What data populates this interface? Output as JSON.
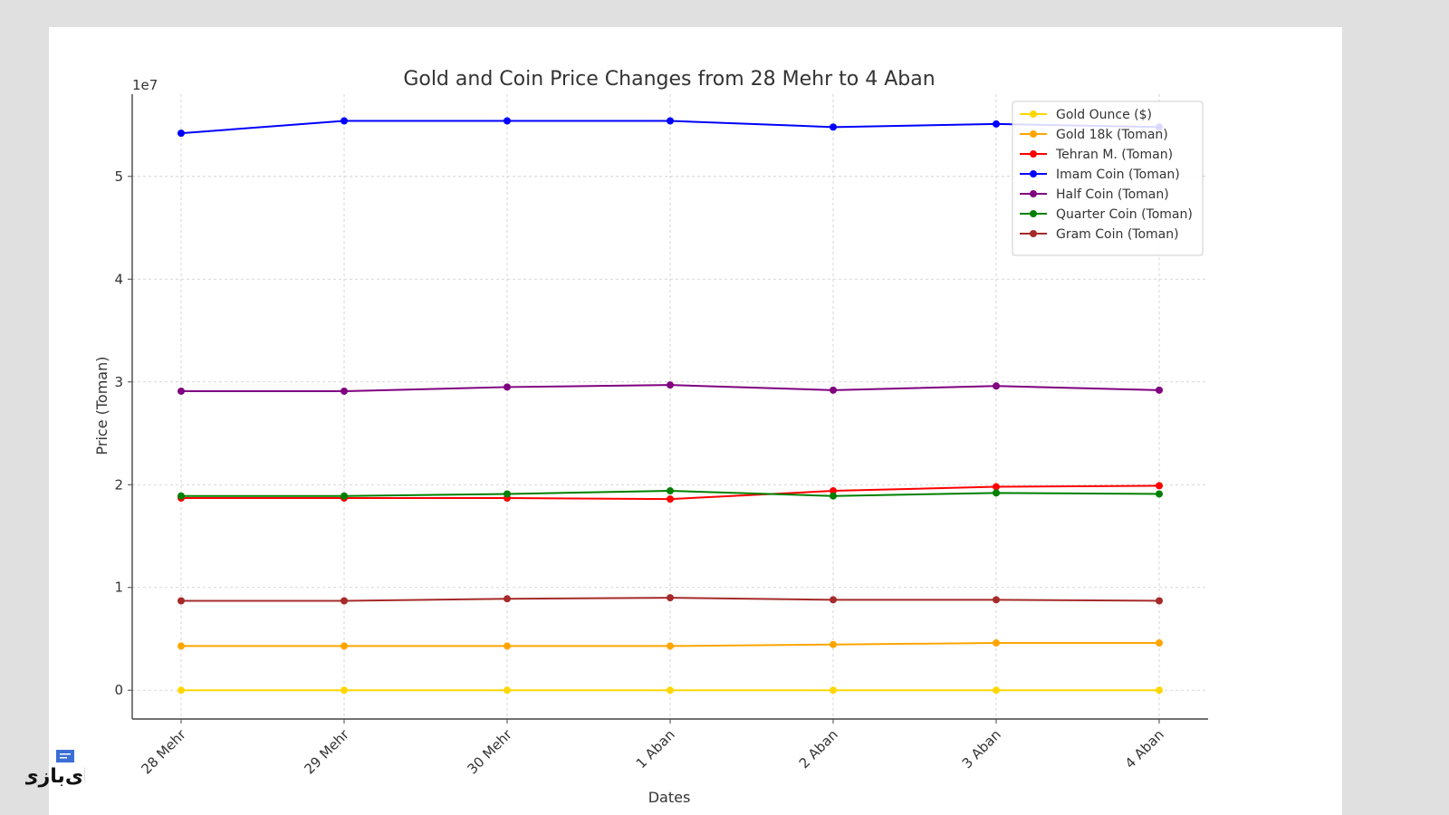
{
  "watermark": {
    "text": "ای‌بازی"
  },
  "chart_data": {
    "type": "line",
    "title": "Gold and Coin Price Changes from 28 Mehr to 4 Aban",
    "xlabel": "Dates",
    "ylabel": "Price (Toman)",
    "y_scale_label": "1e7",
    "categories": [
      "28 Mehr",
      "29 Mehr",
      "30 Mehr",
      "1 Aban",
      "2 Aban",
      "3 Aban",
      "4 Aban"
    ],
    "ylim": [
      -2800000,
      58000000
    ],
    "y_ticks": [
      0,
      10000000,
      20000000,
      30000000,
      40000000,
      50000000
    ],
    "y_tick_labels": [
      "0",
      "1",
      "2",
      "3",
      "4",
      "5"
    ],
    "grid": true,
    "legend_position": "top-right",
    "series": [
      {
        "name": "Gold Ounce ($)",
        "color": "#ffd700",
        "values": [
          2740,
          2738,
          2727,
          2747,
          2738,
          2740,
          2735
        ]
      },
      {
        "name": "Gold 18k (Toman)",
        "color": "#ffa500",
        "values": [
          4300000,
          4300000,
          4300000,
          4300000,
          4450000,
          4600000,
          4600000
        ]
      },
      {
        "name": "Tehran M. (Toman)",
        "color": "#ff0000",
        "values": [
          18700000,
          18700000,
          18700000,
          18600000,
          19400000,
          19800000,
          19900000
        ]
      },
      {
        "name": "Imam Coin (Toman)",
        "color": "#0000ff",
        "values": [
          54200000,
          55400000,
          55400000,
          55400000,
          54800000,
          55100000,
          54800000
        ]
      },
      {
        "name": "Half Coin (Toman)",
        "color": "#800080",
        "values": [
          29100000,
          29100000,
          29500000,
          29700000,
          29200000,
          29600000,
          29200000
        ]
      },
      {
        "name": "Quarter Coin (Toman)",
        "color": "#008000",
        "values": [
          18900000,
          18900000,
          19100000,
          19400000,
          18900000,
          19200000,
          19100000
        ]
      },
      {
        "name": "Gram Coin (Toman)",
        "color": "#a52a2a",
        "values": [
          8700000,
          8700000,
          8900000,
          9000000,
          8800000,
          8800000,
          8700000
        ]
      }
    ]
  }
}
